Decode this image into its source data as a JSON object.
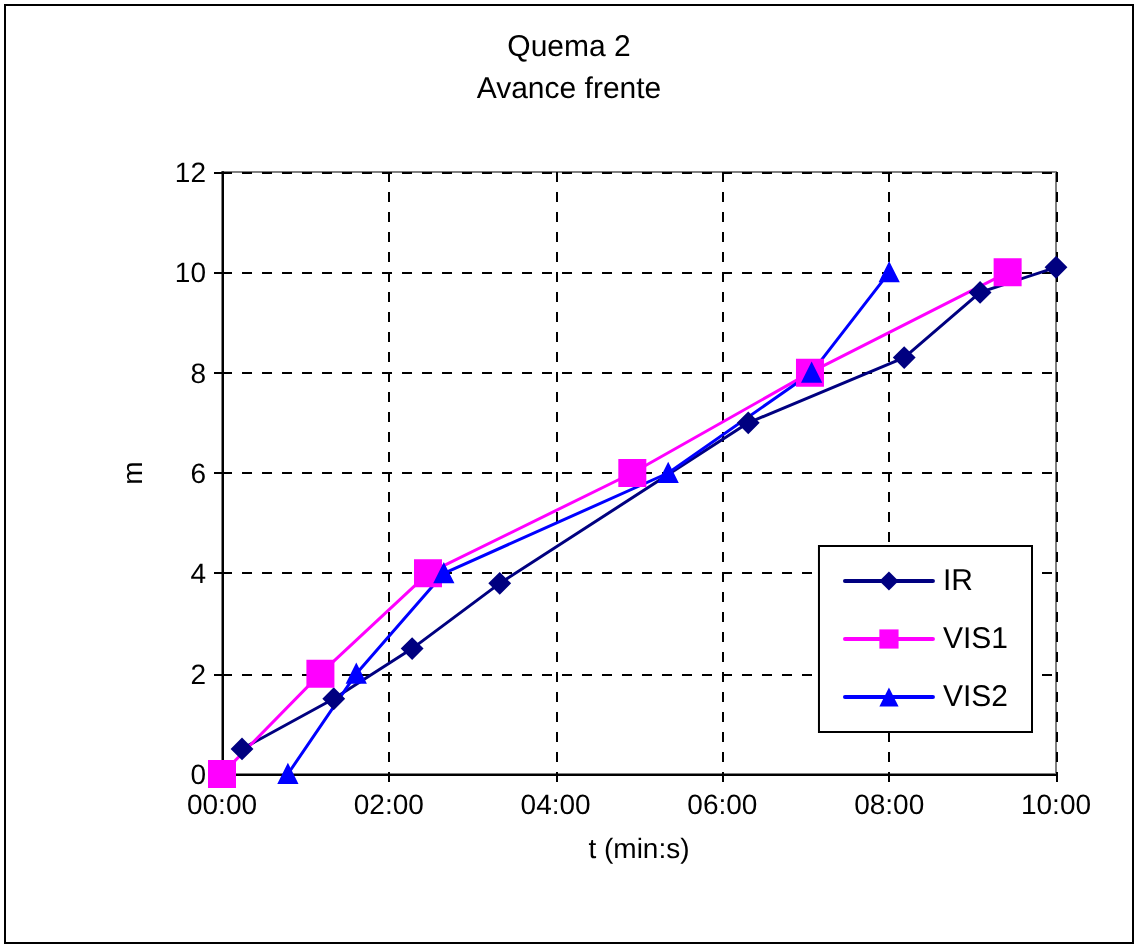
{
  "chart_data": {
    "type": "line",
    "title": "Quema 2",
    "subtitle": "Avance frente",
    "xlabel": "t (min:s)",
    "ylabel": "m",
    "xlim": [
      0,
      10
    ],
    "xticks": [
      {
        "value": 0,
        "label": "00:00"
      },
      {
        "value": 2,
        "label": "02:00"
      },
      {
        "value": 4,
        "label": "04:00"
      },
      {
        "value": 6,
        "label": "06:00"
      },
      {
        "value": 8,
        "label": "08:00"
      },
      {
        "value": 10,
        "label": "10:00"
      }
    ],
    "ylim": [
      0,
      12
    ],
    "yticks": [
      0,
      2,
      4,
      6,
      8,
      10,
      12
    ],
    "grid": true,
    "legend": "bottom right",
    "line_style": "solid",
    "series": [
      {
        "name": "IR",
        "color": "#000080",
        "marker": "diamond",
        "x": [
          0.24,
          1.34,
          2.28,
          3.33,
          6.31,
          8.18,
          9.09,
          10
        ],
        "values": [
          0.5,
          1.5,
          2.5,
          3.8,
          7.0,
          8.3,
          9.6,
          10.1
        ]
      },
      {
        "name": "VIS1",
        "color": "#ff00ff",
        "marker": "square",
        "x": [
          0,
          1.18,
          2.47,
          4.92,
          7.05,
          9.42
        ],
        "values": [
          0,
          2,
          4,
          6,
          8,
          10
        ]
      },
      {
        "name": "VIS2",
        "color": "#0000ff",
        "marker": "triangle",
        "x": [
          0.79,
          1.61,
          2.66,
          5.35,
          7.07,
          8.0
        ],
        "values": [
          0,
          2,
          4,
          6,
          8,
          10
        ]
      }
    ]
  }
}
